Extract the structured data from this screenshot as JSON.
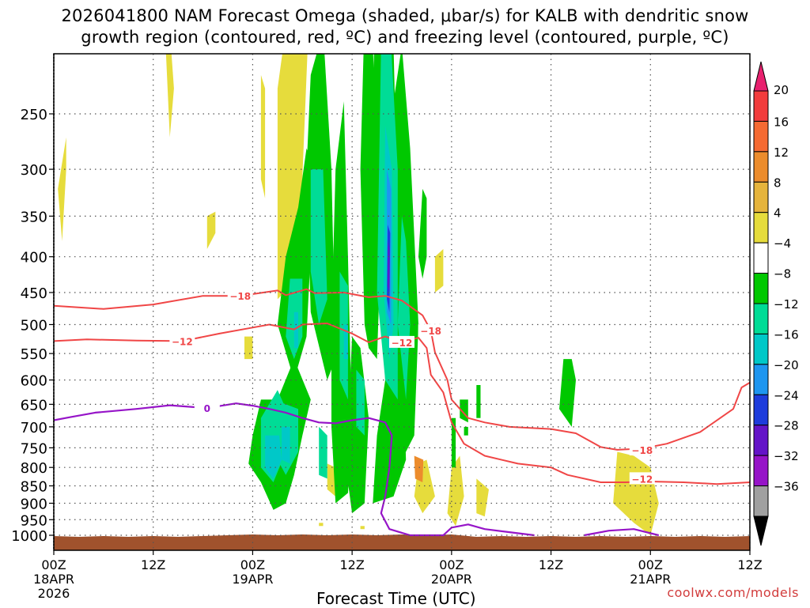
{
  "title": {
    "line1": "2026041800 NAM Forecast Omega (shaded, μbar/s) for KALB with dendritic snow",
    "line2": "growth region (contoured, red, ºC) and freezing level (contoured, purple, ºC)"
  },
  "credit": "coolwx.com/models",
  "chart_data": {
    "type": "heatmap",
    "xlabel": "Forecast Time (UTC)",
    "ylabel": "",
    "x_range_hours": [
      0,
      84
    ],
    "y_range_hPa": [
      1050,
      200
    ],
    "y_scale": "log-pressure (inverted)",
    "grid": true,
    "y_ticks": [
      250,
      300,
      350,
      400,
      450,
      500,
      550,
      600,
      650,
      700,
      750,
      800,
      850,
      900,
      950,
      1000
    ],
    "x_ticks": [
      {
        "h": 0,
        "line1": "00Z",
        "line2": "18APR",
        "line3": "2026"
      },
      {
        "h": 12,
        "line1": "12Z",
        "line2": "",
        "line3": ""
      },
      {
        "h": 24,
        "line1": "00Z",
        "line2": "19APR",
        "line3": ""
      },
      {
        "h": 36,
        "line1": "12Z",
        "line2": "",
        "line3": ""
      },
      {
        "h": 48,
        "line1": "00Z",
        "line2": "20APR",
        "line3": ""
      },
      {
        "h": 60,
        "line1": "12Z",
        "line2": "",
        "line3": ""
      },
      {
        "h": 72,
        "line1": "00Z",
        "line2": "21APR",
        "line3": ""
      },
      {
        "h": 84,
        "line1": "12Z",
        "line2": "",
        "line3": ""
      }
    ],
    "colorbar": {
      "labels": [
        "20",
        "16",
        "12",
        "8",
        "4",
        "−4",
        "−8",
        "−12",
        "−16",
        "−20",
        "−24",
        "−28",
        "−32",
        "−36"
      ],
      "colors": [
        "#e8206e",
        "#f23c3c",
        "#f56a32",
        "#ec8c2c",
        "#e6b43c",
        "#e6dc3c",
        "#ffffff",
        "#00c800",
        "#00dc96",
        "#00c8c8",
        "#1e96f0",
        "#1e3cdc",
        "#6414c8",
        "#9614c8",
        "#a0a0a0",
        "#000000"
      ]
    },
    "shading": [
      {
        "color": "#e6dc3c",
        "cells": [
          [
            0.5,
            320,
            1,
            380,
            1.5,
            300,
            1.5,
            270
          ],
          [
            13.5,
            200,
            14,
            270,
            14.5,
            230,
            14,
            190
          ],
          [
            18.5,
            350,
            18.5,
            390,
            19.5,
            370,
            19.5,
            345
          ],
          [
            25,
            220,
            25,
            310,
            25.5,
            330,
            25.5,
            230
          ],
          [
            27,
            230,
            27,
            460,
            29.5,
            430,
            30.8,
            180,
            29.5,
            140
          ],
          [
            30.5,
            310,
            31,
            400,
            31.5,
            360,
            31,
            290
          ],
          [
            23,
            520,
            23,
            560,
            24,
            560,
            24,
            520
          ],
          [
            37.5,
            220,
            37.5,
            350,
            38.5,
            350,
            38.5,
            180
          ],
          [
            46,
            400,
            46,
            450,
            47,
            440,
            47,
            390
          ],
          [
            44,
            790,
            43.5,
            880,
            44.5,
            930,
            46,
            880,
            45,
            780
          ],
          [
            48,
            800,
            47.5,
            930,
            48.5,
            970,
            49.5,
            880,
            49,
            770
          ],
          [
            51,
            830,
            51,
            930,
            52,
            940,
            52.5,
            860
          ],
          [
            68,
            760,
            67.5,
            900,
            70,
            960,
            72,
            1000,
            73,
            900,
            72,
            800,
            70,
            770
          ],
          [
            33,
            790,
            33,
            860,
            34,
            880,
            34,
            800
          ],
          [
            32,
            960,
            32,
            970,
            32.5,
            970,
            32.5,
            960
          ],
          [
            37,
            970,
            37,
            980,
            37.5,
            980,
            37.5,
            970
          ]
        ]
      },
      {
        "color": "#ec8c2c",
        "cells": [
          [
            43.5,
            770,
            43.6,
            830,
            44.5,
            840,
            44.6,
            780
          ]
        ]
      },
      {
        "color": "#00c800",
        "cells": [
          [
            25,
            640,
            24,
            720,
            23.5,
            790,
            25,
            840,
            26.5,
            920,
            28,
            900,
            29,
            820,
            30,
            720,
            31,
            640,
            29,
            560,
            27,
            640
          ],
          [
            28,
            400,
            27,
            500,
            29,
            600,
            30.5,
            520,
            31.5,
            300,
            30.5,
            280,
            29.5,
            340
          ],
          [
            31,
            220,
            30.5,
            300,
            31,
            480,
            33,
            600,
            34,
            560,
            33.5,
            300,
            32.5,
            190
          ],
          [
            34,
            300,
            33.5,
            500,
            33.5,
            700,
            34,
            900,
            35.5,
            870,
            36,
            720,
            35.5,
            400,
            35,
            240
          ],
          [
            36,
            520,
            35.5,
            700,
            35.5,
            840,
            36,
            930,
            37.5,
            900,
            38,
            680,
            37,
            540
          ],
          [
            37.5,
            180,
            37,
            300,
            37.5,
            500,
            38,
            540,
            39,
            560,
            39.5,
            380,
            38.5,
            200
          ],
          [
            39,
            120,
            38.5,
            250,
            39,
            380,
            39.5,
            460,
            40,
            600,
            39,
            720,
            38.5,
            900,
            41,
            880,
            42.5,
            780,
            42,
            500,
            41.5,
            350,
            41,
            200,
            40,
            110
          ],
          [
            41,
            240,
            40.5,
            380,
            41.5,
            560,
            42,
            780,
            43.5,
            720,
            44,
            500,
            43,
            280,
            42,
            200
          ],
          [
            44.5,
            320,
            44,
            400,
            44.5,
            430,
            45,
            400,
            45,
            330
          ],
          [
            49.5,
            700,
            49.5,
            720,
            50,
            720,
            50,
            700
          ],
          [
            51,
            610,
            51,
            680,
            51.5,
            680,
            51.5,
            610
          ],
          [
            49,
            640,
            49,
            680,
            50,
            690,
            50,
            640
          ],
          [
            61.5,
            560,
            61,
            660,
            62.5,
            700,
            63,
            600,
            62.5,
            560
          ],
          [
            48,
            680,
            48,
            800,
            48.5,
            800,
            48.5,
            680
          ],
          [
            42,
            500,
            41.8,
            560,
            42.6,
            560,
            42.8,
            500
          ]
        ]
      },
      {
        "color": "#00dc96",
        "cells": [
          [
            25,
            680,
            25,
            800,
            26.5,
            840,
            28,
            760,
            28.5,
            680,
            27,
            620
          ],
          [
            26.5,
            640,
            26.5,
            760,
            28,
            820,
            29.5,
            760,
            29.5,
            660
          ],
          [
            28.5,
            430,
            28,
            520,
            29,
            560,
            30,
            520,
            30,
            430
          ],
          [
            31,
            300,
            31,
            420,
            32,
            500,
            33,
            460,
            32.5,
            300
          ],
          [
            34.5,
            420,
            34.5,
            600,
            35.5,
            640,
            35.5,
            440
          ],
          [
            39.5,
            200,
            39,
            450,
            40,
            600,
            41.5,
            640,
            41.5,
            300,
            40.5,
            180
          ],
          [
            42,
            350,
            41.5,
            500,
            42.5,
            640,
            43,
            500,
            42.5,
            380
          ],
          [
            36.5,
            580,
            36.5,
            700,
            37.5,
            720,
            37.5,
            600
          ],
          [
            32,
            700,
            32,
            820,
            33,
            830,
            33,
            720
          ]
        ]
      },
      {
        "color": "#00c8c8",
        "cells": [
          [
            25.5,
            720,
            25.5,
            800,
            26.5,
            830,
            27.5,
            780,
            27.2,
            720
          ],
          [
            27.5,
            700,
            27.5,
            780,
            28.5,
            790,
            28.5,
            700
          ],
          [
            40,
            260,
            39.8,
            450,
            40.5,
            560,
            41,
            500,
            40.8,
            300
          ],
          [
            29,
            480,
            29,
            540,
            29.5,
            540,
            29.5,
            480
          ],
          [
            35,
            500,
            35,
            560,
            35.5,
            560,
            35.5,
            500
          ]
        ]
      },
      {
        "color": "#1e96f0",
        "cells": [
          [
            40.2,
            300,
            40.2,
            480,
            40.7,
            500,
            40.7,
            320
          ]
        ]
      },
      {
        "color": "#1e3cdc",
        "cells": [
          [
            40.3,
            360,
            40.2,
            460,
            40.5,
            480,
            40.6,
            370
          ]
        ]
      },
      {
        "color": "#6414c8",
        "cells": [
          [
            40.35,
            380,
            40.3,
            440,
            40.5,
            450,
            40.5,
            390
          ]
        ]
      }
    ],
    "isotherms": [
      {
        "label": "−18",
        "color": "#f04646",
        "label_at": [
          22.5,
          455
        ],
        "label2_at": [
          45.5,
          510
        ],
        "label3_at": [
          71,
          755
        ],
        "points": [
          [
            0,
            470
          ],
          [
            6,
            475
          ],
          [
            12,
            468
          ],
          [
            18,
            455
          ],
          [
            22.5,
            455
          ],
          [
            27,
            447
          ],
          [
            28,
            454
          ],
          [
            30.5,
            445
          ],
          [
            31.5,
            451
          ],
          [
            35,
            450
          ],
          [
            38,
            457
          ],
          [
            40,
            455
          ],
          [
            42,
            462
          ],
          [
            44.5,
            485
          ],
          [
            45.5,
            510
          ],
          [
            46,
            548
          ],
          [
            47.5,
            600
          ],
          [
            48,
            640
          ],
          [
            50,
            680
          ],
          [
            52,
            690
          ],
          [
            55,
            700
          ],
          [
            60,
            705
          ],
          [
            63,
            715
          ],
          [
            66,
            748
          ],
          [
            68,
            755
          ],
          [
            71,
            752
          ],
          [
            74,
            740
          ],
          [
            78,
            712
          ],
          [
            82,
            660
          ],
          [
            83,
            615
          ],
          [
            84,
            605
          ]
        ]
      },
      {
        "label": "−12",
        "color": "#f04646",
        "label_at": [
          15.5,
          528
        ],
        "label2_at": [
          42,
          530
        ],
        "label3_at": [
          71,
          830
        ],
        "points": [
          [
            0,
            528
          ],
          [
            4,
            525
          ],
          [
            10,
            527
          ],
          [
            15.5,
            528
          ],
          [
            20,
            515
          ],
          [
            24,
            505
          ],
          [
            26,
            500
          ],
          [
            29,
            508
          ],
          [
            30,
            500
          ],
          [
            33,
            498
          ],
          [
            36,
            515
          ],
          [
            38,
            530
          ],
          [
            40,
            520
          ],
          [
            42,
            530
          ],
          [
            44,
            522
          ],
          [
            45,
            540
          ],
          [
            45.5,
            590
          ],
          [
            47,
            625
          ],
          [
            48,
            690
          ],
          [
            49.5,
            740
          ],
          [
            52,
            770
          ],
          [
            56,
            790
          ],
          [
            60,
            800
          ],
          [
            62,
            820
          ],
          [
            66,
            840
          ],
          [
            69,
            840
          ],
          [
            72,
            838
          ],
          [
            76,
            840
          ],
          [
            80,
            845
          ],
          [
            84,
            840
          ]
        ]
      }
    ],
    "freezing": [
      {
        "label": "0",
        "color": "#9614c8",
        "label_at": [
          18.5,
          658
        ],
        "points": [
          [
            0,
            685
          ],
          [
            2,
            678
          ],
          [
            5,
            668
          ],
          [
            10,
            660
          ],
          [
            14,
            652
          ],
          [
            18.5,
            658
          ],
          [
            22,
            648
          ],
          [
            24,
            653
          ],
          [
            26,
            660
          ],
          [
            28,
            668
          ],
          [
            30,
            680
          ],
          [
            32,
            690
          ],
          [
            34,
            692
          ],
          [
            36,
            685
          ],
          [
            38,
            680
          ],
          [
            40,
            690
          ],
          [
            40.8,
            720
          ],
          [
            40.5,
            800
          ],
          [
            40,
            880
          ],
          [
            39.5,
            930
          ],
          [
            40.5,
            980
          ],
          [
            43,
            1000
          ],
          [
            47,
            1000
          ],
          [
            48,
            975
          ],
          [
            50,
            965
          ],
          [
            52,
            980
          ],
          [
            55,
            990
          ],
          [
            58,
            1000
          ]
        ]
      },
      {
        "label": "",
        "color": "#9614c8",
        "label_at": null,
        "points": [
          [
            64,
            1000
          ],
          [
            67,
            985
          ],
          [
            70,
            980
          ],
          [
            73,
            1000
          ]
        ]
      }
    ]
  }
}
